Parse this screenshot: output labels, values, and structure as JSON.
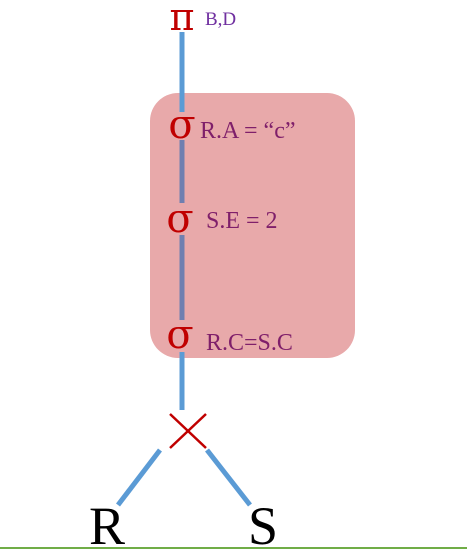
{
  "projection": {
    "symbol": "π",
    "attributes": "B,D"
  },
  "selections": [
    {
      "symbol": "σ",
      "condition": "R.A = “c”"
    },
    {
      "symbol": "σ",
      "condition": "S.E = 2"
    },
    {
      "symbol": "σ",
      "condition": "R.C=S.C"
    }
  ],
  "join": {
    "symbol": "×"
  },
  "relations": {
    "left": "R",
    "right": "S"
  },
  "colors": {
    "edge": "#5b9bd5",
    "highlight_box": "#e8a9aa",
    "operator": "#c00000",
    "condition_text": "#7f1f6a",
    "attribute_text": "#7030a0",
    "ground_line": "#70ad47",
    "leaf_text": "#000000"
  }
}
